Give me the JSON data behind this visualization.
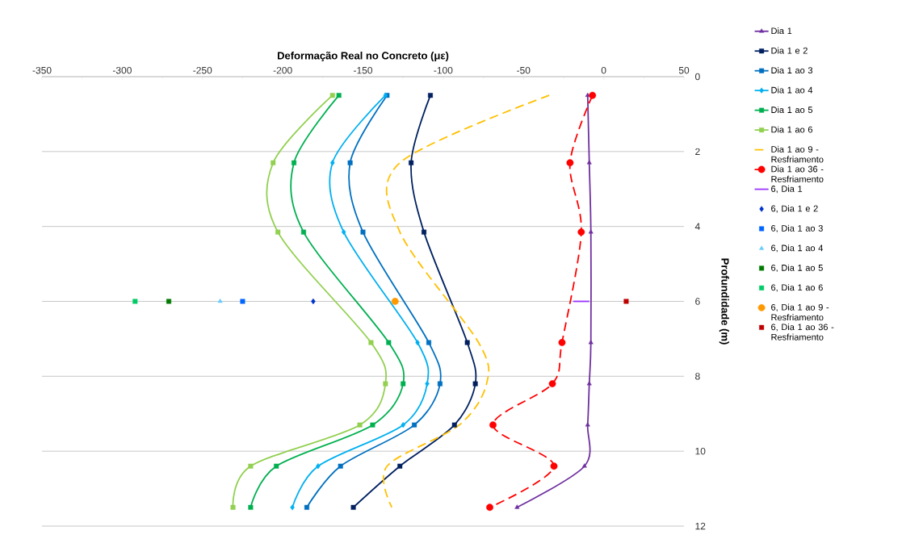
{
  "chart_data": {
    "type": "line",
    "xlabel": "Deformação Real no Concreto (με)",
    "ylabel": "Profundidade (m)",
    "xlim": [
      -350,
      50
    ],
    "xticks": [
      -350,
      -300,
      -250,
      -200,
      -150,
      -100,
      -50,
      0,
      50
    ],
    "ylim": [
      12,
      0
    ],
    "yticks": [
      0,
      2,
      4,
      6,
      8,
      10,
      12
    ],
    "grid": "y",
    "legend": "right",
    "series": [
      {
        "name": "Dia 1",
        "color": "#7030a0",
        "marker": "triangle",
        "x": [
          -10,
          -9,
          -8,
          -8,
          -9,
          -10,
          -12,
          -54
        ],
        "values": [
          0.5,
          2.3,
          4.15,
          7.1,
          8.2,
          9.3,
          10.4,
          11.5
        ]
      },
      {
        "name": "Dia 1 e 2",
        "color": "#002060",
        "marker": "square",
        "x": [
          -108,
          -120,
          -112,
          -85,
          -80,
          -93,
          -127,
          -156
        ],
        "values": [
          0.5,
          2.3,
          4.15,
          7.1,
          8.2,
          9.3,
          10.4,
          11.5
        ]
      },
      {
        "name": "Dia 1 ao 3",
        "color": "#0070c0",
        "marker": "square",
        "x": [
          -135,
          -158,
          -150,
          -109,
          -102,
          -118,
          -164,
          -185
        ],
        "values": [
          0.5,
          2.3,
          4.15,
          7.1,
          8.2,
          9.3,
          10.4,
          11.5
        ]
      },
      {
        "name": "Dia 1 ao 4",
        "color": "#00b0f0",
        "marker": "diamond",
        "x": [
          -136,
          -169,
          -162,
          -116,
          -110,
          -125,
          -178,
          -194
        ],
        "values": [
          0.5,
          2.3,
          4.15,
          7.1,
          8.2,
          9.3,
          10.4,
          11.5
        ]
      },
      {
        "name": "Dia 1 ao 5",
        "color": "#00b050",
        "marker": "square",
        "x": [
          -165,
          -193,
          -187,
          -134,
          -125,
          -144,
          -204,
          -220
        ],
        "values": [
          0.5,
          2.3,
          4.15,
          7.1,
          8.2,
          9.3,
          10.4,
          11.5
        ]
      },
      {
        "name": "Dia 1 ao 6",
        "color": "#92d050",
        "marker": "square",
        "x": [
          -169,
          -206,
          -203,
          -145,
          -136,
          -152,
          -220,
          -231
        ],
        "values": [
          0.5,
          2.3,
          4.15,
          7.1,
          8.2,
          9.3,
          10.4,
          11.5
        ]
      },
      {
        "name": "Dia 1 ao 9 - Resfriamento",
        "color": "#ffc000",
        "marker": "none",
        "line_style": "dashed",
        "x": [
          -34,
          -127,
          -127,
          -78,
          -73,
          -90,
          -135,
          -132
        ],
        "values": [
          0.5,
          2.3,
          4.15,
          7.1,
          8.2,
          9.3,
          10.4,
          11.5
        ]
      },
      {
        "name": "Dia 1 ao 36 - Resfriamento",
        "color": "#ff0000",
        "marker": "circle",
        "line_style": "dashed",
        "x": [
          -7,
          -21,
          -14,
          -26,
          -32,
          -69,
          -31,
          -71
        ],
        "values": [
          0.5,
          2.3,
          4.15,
          7.1,
          8.2,
          9.3,
          10.4,
          11.5
        ]
      },
      {
        "name": "6, Dia 1",
        "color": "#9933ff",
        "marker": "none",
        "x": [
          -19,
          -9
        ],
        "values": [
          6,
          6
        ]
      },
      {
        "name": "6, Dia 1 e 2",
        "type": "scatter",
        "color": "#0033cc",
        "marker": "diamond",
        "x": [
          -181
        ],
        "values": [
          6
        ]
      },
      {
        "name": "6, Dia 1 ao 3",
        "type": "scatter",
        "color": "#0066ff",
        "marker": "square",
        "x": [
          -225
        ],
        "values": [
          6
        ]
      },
      {
        "name": "6, Dia 1 ao 4",
        "type": "scatter",
        "color": "#66ccff",
        "marker": "triangle",
        "x": [
          -239
        ],
        "values": [
          6
        ]
      },
      {
        "name": "6, Dia 1 ao 5",
        "type": "scatter",
        "color": "#007a00",
        "marker": "square",
        "x": [
          -271
        ],
        "values": [
          6
        ]
      },
      {
        "name": "6, Dia 1 ao 6",
        "type": "scatter",
        "color": "#00cc66",
        "marker": "square",
        "x": [
          -292
        ],
        "values": [
          6
        ]
      },
      {
        "name": "6, Dia 1 ao 9 - Resfriamento",
        "type": "scatter",
        "color": "#ff9900",
        "marker": "circle",
        "x": [
          -130
        ],
        "values": [
          6
        ]
      },
      {
        "name": "6, Dia 1 ao 36 - Resfriamento",
        "type": "scatter",
        "color": "#c00000",
        "marker": "square",
        "x": [
          14
        ],
        "values": [
          6
        ]
      }
    ]
  }
}
